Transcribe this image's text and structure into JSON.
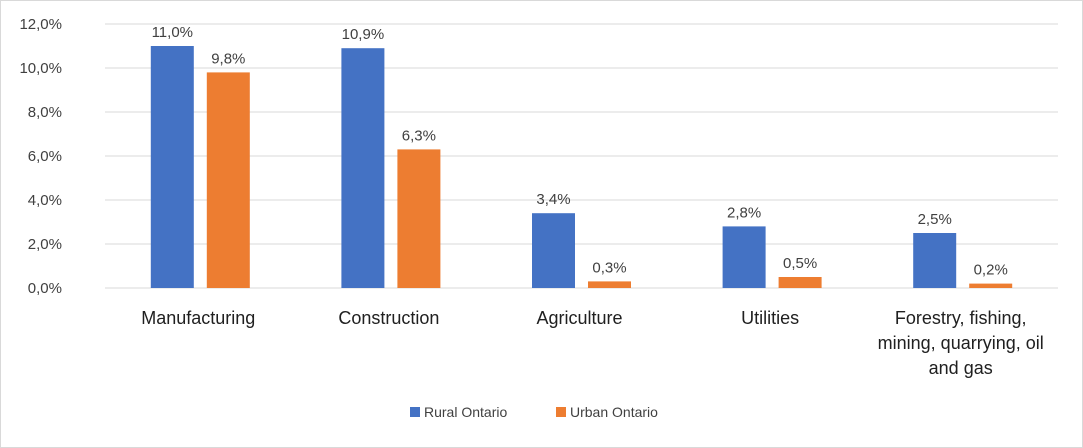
{
  "chart_data": {
    "type": "bar",
    "categories": [
      [
        "Manufacturing"
      ],
      [
        "Construction"
      ],
      [
        "Agriculture"
      ],
      [
        "Utilities"
      ],
      [
        "Forestry, fishing,",
        "mining, quarrying, oil",
        "and gas"
      ]
    ],
    "series": [
      {
        "name": "Rural Ontario",
        "color": "#4472c4",
        "values": [
          11.0,
          10.9,
          3.4,
          2.8,
          2.5
        ],
        "labels": [
          "11,0%",
          "10,9%",
          "3,4%",
          "2,8%",
          "2,5%"
        ]
      },
      {
        "name": "Urban Ontario",
        "color": "#ed7d31",
        "values": [
          9.8,
          6.3,
          0.3,
          0.5,
          0.2
        ],
        "labels": [
          "9,8%",
          "6,3%",
          "0,3%",
          "0,5%",
          "0,2%"
        ]
      }
    ],
    "ylim": [
      0,
      12
    ],
    "yticks": [
      "0,0%",
      "2,0%",
      "4,0%",
      "6,0%",
      "8,0%",
      "10,0%",
      "12,0%"
    ],
    "grid": true,
    "legend_position": "bottom"
  }
}
